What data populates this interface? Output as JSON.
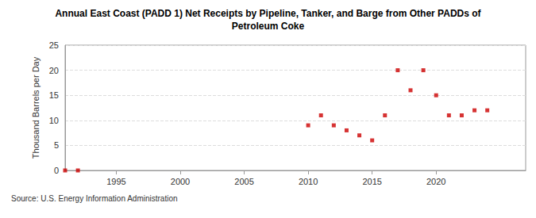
{
  "chart_data": {
    "type": "scatter",
    "title": "Annual East Coast (PADD 1) Net Receipts by Pipeline, Tanker, and Barge from Other PADDs of\nPetroleum Coke",
    "y_label": "Thousand Barrels per Day",
    "annotations": [
      "Source: U.S. Energy Information Administration"
    ],
    "x": [
      1991,
      1992,
      2010,
      2011,
      2012,
      2013,
      2014,
      2015,
      2016,
      2017,
      2018,
      2019,
      2020,
      2021,
      2022,
      2023,
      2024
    ],
    "values": [
      0,
      0,
      9,
      11,
      9,
      8,
      7,
      6,
      11,
      20,
      16,
      20,
      15,
      11,
      11,
      12,
      12
    ],
    "color": "#cc0000",
    "marker": "square",
    "xlim": [
      1991,
      2027
    ],
    "xticks": [
      1995,
      2000,
      2005,
      2010,
      2015,
      2020
    ],
    "ylim": [
      0,
      25
    ],
    "yticks": [
      0,
      5,
      10,
      15,
      20,
      25
    ],
    "grid": true
  }
}
